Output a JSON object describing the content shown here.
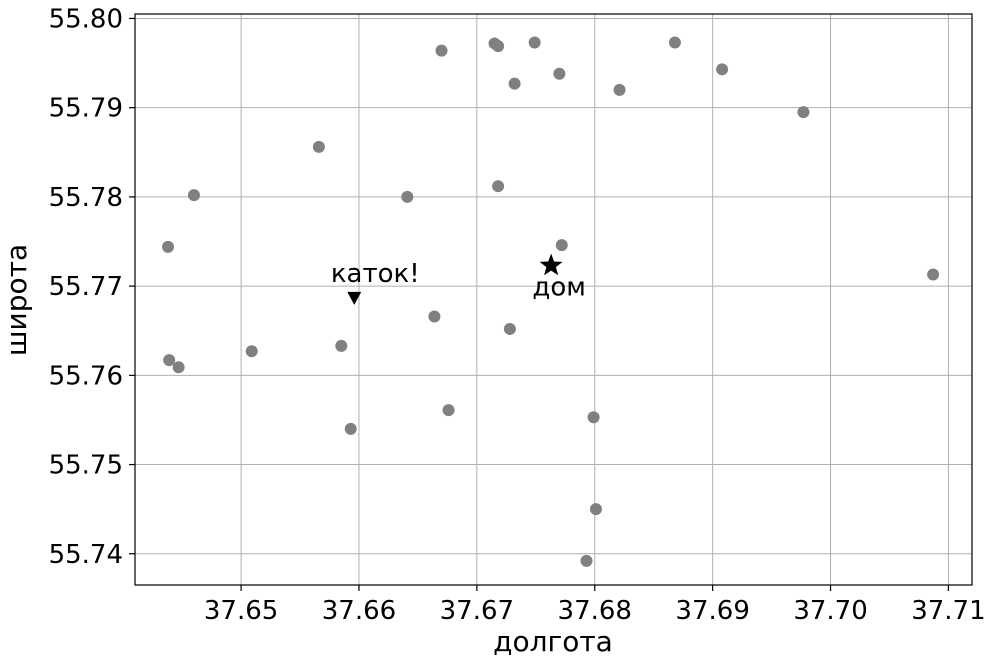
{
  "chart_data": {
    "type": "scatter",
    "xlabel": "долгота",
    "ylabel": "широта",
    "xlim": [
      37.641,
      37.712
    ],
    "ylim": [
      55.7365,
      55.8005
    ],
    "xticks": [
      37.65,
      37.66,
      37.67,
      37.68,
      37.69,
      37.7,
      37.71
    ],
    "xtick_labels": [
      "37.65",
      "37.66",
      "37.67",
      "37.68",
      "37.69",
      "37.70",
      "37.71"
    ],
    "yticks": [
      55.74,
      55.75,
      55.76,
      55.77,
      55.78,
      55.79,
      55.8
    ],
    "ytick_labels": [
      "55.74",
      "55.75",
      "55.76",
      "55.77",
      "55.78",
      "55.79",
      "55.80"
    ],
    "grid": true,
    "point_color": "#808080",
    "marker_color": "#000000",
    "points": [
      {
        "x": 37.667,
        "y": 55.7964
      },
      {
        "x": 37.6715,
        "y": 55.7972
      },
      {
        "x": 37.6718,
        "y": 55.7969
      },
      {
        "x": 37.6749,
        "y": 55.7973
      },
      {
        "x": 37.6868,
        "y": 55.7973
      },
      {
        "x": 37.6732,
        "y": 55.7927
      },
      {
        "x": 37.677,
        "y": 55.7938
      },
      {
        "x": 37.6821,
        "y": 55.792
      },
      {
        "x": 37.6908,
        "y": 55.7943
      },
      {
        "x": 37.6977,
        "y": 55.7895
      },
      {
        "x": 37.6566,
        "y": 55.7856
      },
      {
        "x": 37.646,
        "y": 55.7802
      },
      {
        "x": 37.6641,
        "y": 55.78
      },
      {
        "x": 37.6718,
        "y": 55.7812
      },
      {
        "x": 37.6438,
        "y": 55.7744
      },
      {
        "x": 37.6772,
        "y": 55.7746
      },
      {
        "x": 37.7087,
        "y": 55.7713
      },
      {
        "x": 37.6664,
        "y": 55.7666
      },
      {
        "x": 37.6728,
        "y": 55.7652
      },
      {
        "x": 37.6585,
        "y": 55.7633
      },
      {
        "x": 37.6509,
        "y": 55.7627
      },
      {
        "x": 37.6439,
        "y": 55.7617
      },
      {
        "x": 37.6447,
        "y": 55.7609
      },
      {
        "x": 37.6676,
        "y": 55.7561
      },
      {
        "x": 37.6593,
        "y": 55.754
      },
      {
        "x": 37.6799,
        "y": 55.7553
      },
      {
        "x": 37.6801,
        "y": 55.745
      },
      {
        "x": 37.6793,
        "y": 55.7392
      }
    ],
    "annotations": [
      {
        "label": "каток!",
        "x": 37.6596,
        "y": 55.7688,
        "marker": "triangle-down"
      },
      {
        "label": "дом",
        "x": 37.6763,
        "y": 55.7723,
        "marker": "star"
      }
    ]
  }
}
